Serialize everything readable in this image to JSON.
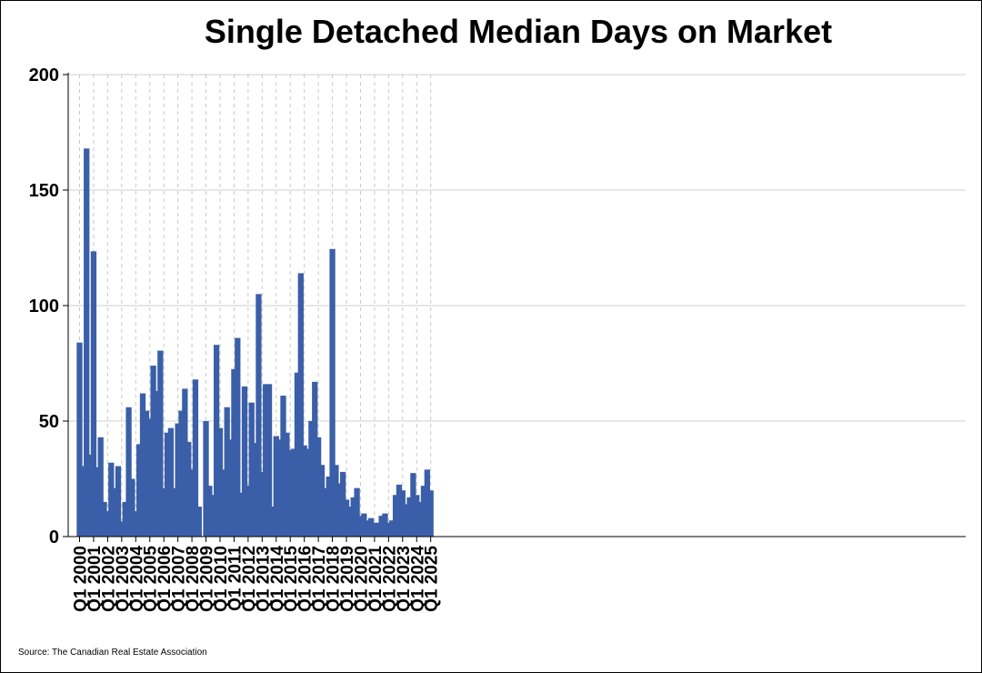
{
  "chart_data": {
    "type": "bar",
    "title": "Single Detached Median Days on Market",
    "xlabel": "",
    "ylabel": "",
    "ylim": [
      0,
      200
    ],
    "yticks": [
      0,
      50,
      100,
      150,
      200
    ],
    "grid": true,
    "color": "#3a5fa8",
    "x_start": "Q1 2000",
    "x_end": "Q1 2025",
    "tick_labels": [
      "Q1 2000",
      "Q1 2001",
      "Q1 2002",
      "Q1 2003",
      "Q1 2004",
      "Q1 2005",
      "Q1 2006",
      "Q1 2007",
      "Q1 2008",
      "Q1 2009",
      "Q1 2010",
      "Q1 2011",
      "Q1 2012",
      "Q1 2013",
      "Q1 2014",
      "Q1 2015",
      "Q1 2016",
      "Q1 2017",
      "Q1 2018",
      "Q1 2019",
      "Q1 2020",
      "Q1 2021",
      "Q1 2022",
      "Q1 2023",
      "Q1 2024",
      "Q1 2025"
    ],
    "values": [
      84,
      30.5,
      168,
      35.5,
      123.5,
      30,
      43,
      15,
      11,
      32,
      21,
      30.5,
      6.5,
      15,
      56,
      25,
      11,
      40,
      62,
      54.5,
      51,
      74,
      63,
      80.5,
      21,
      45,
      47,
      21,
      49,
      54.5,
      64,
      41,
      29,
      68,
      13,
      null,
      50,
      22,
      18,
      83,
      47,
      29,
      56,
      42,
      72.5,
      86,
      19,
      65,
      22,
      58,
      40.5,
      105,
      28,
      66,
      66,
      13,
      43.5,
      42,
      61,
      45,
      37.5,
      38,
      71,
      114,
      39.5,
      38,
      50,
      67,
      43,
      31,
      21,
      26,
      124.5,
      31,
      23,
      28,
      16,
      13,
      17,
      21,
      9,
      10,
      7,
      8,
      6,
      6,
      9,
      10,
      6,
      7,
      18,
      22.5,
      20,
      14,
      17,
      27.5,
      18,
      15,
      22,
      29,
      20
    ]
  },
  "source": "Source: The Canadian Real Estate Association"
}
